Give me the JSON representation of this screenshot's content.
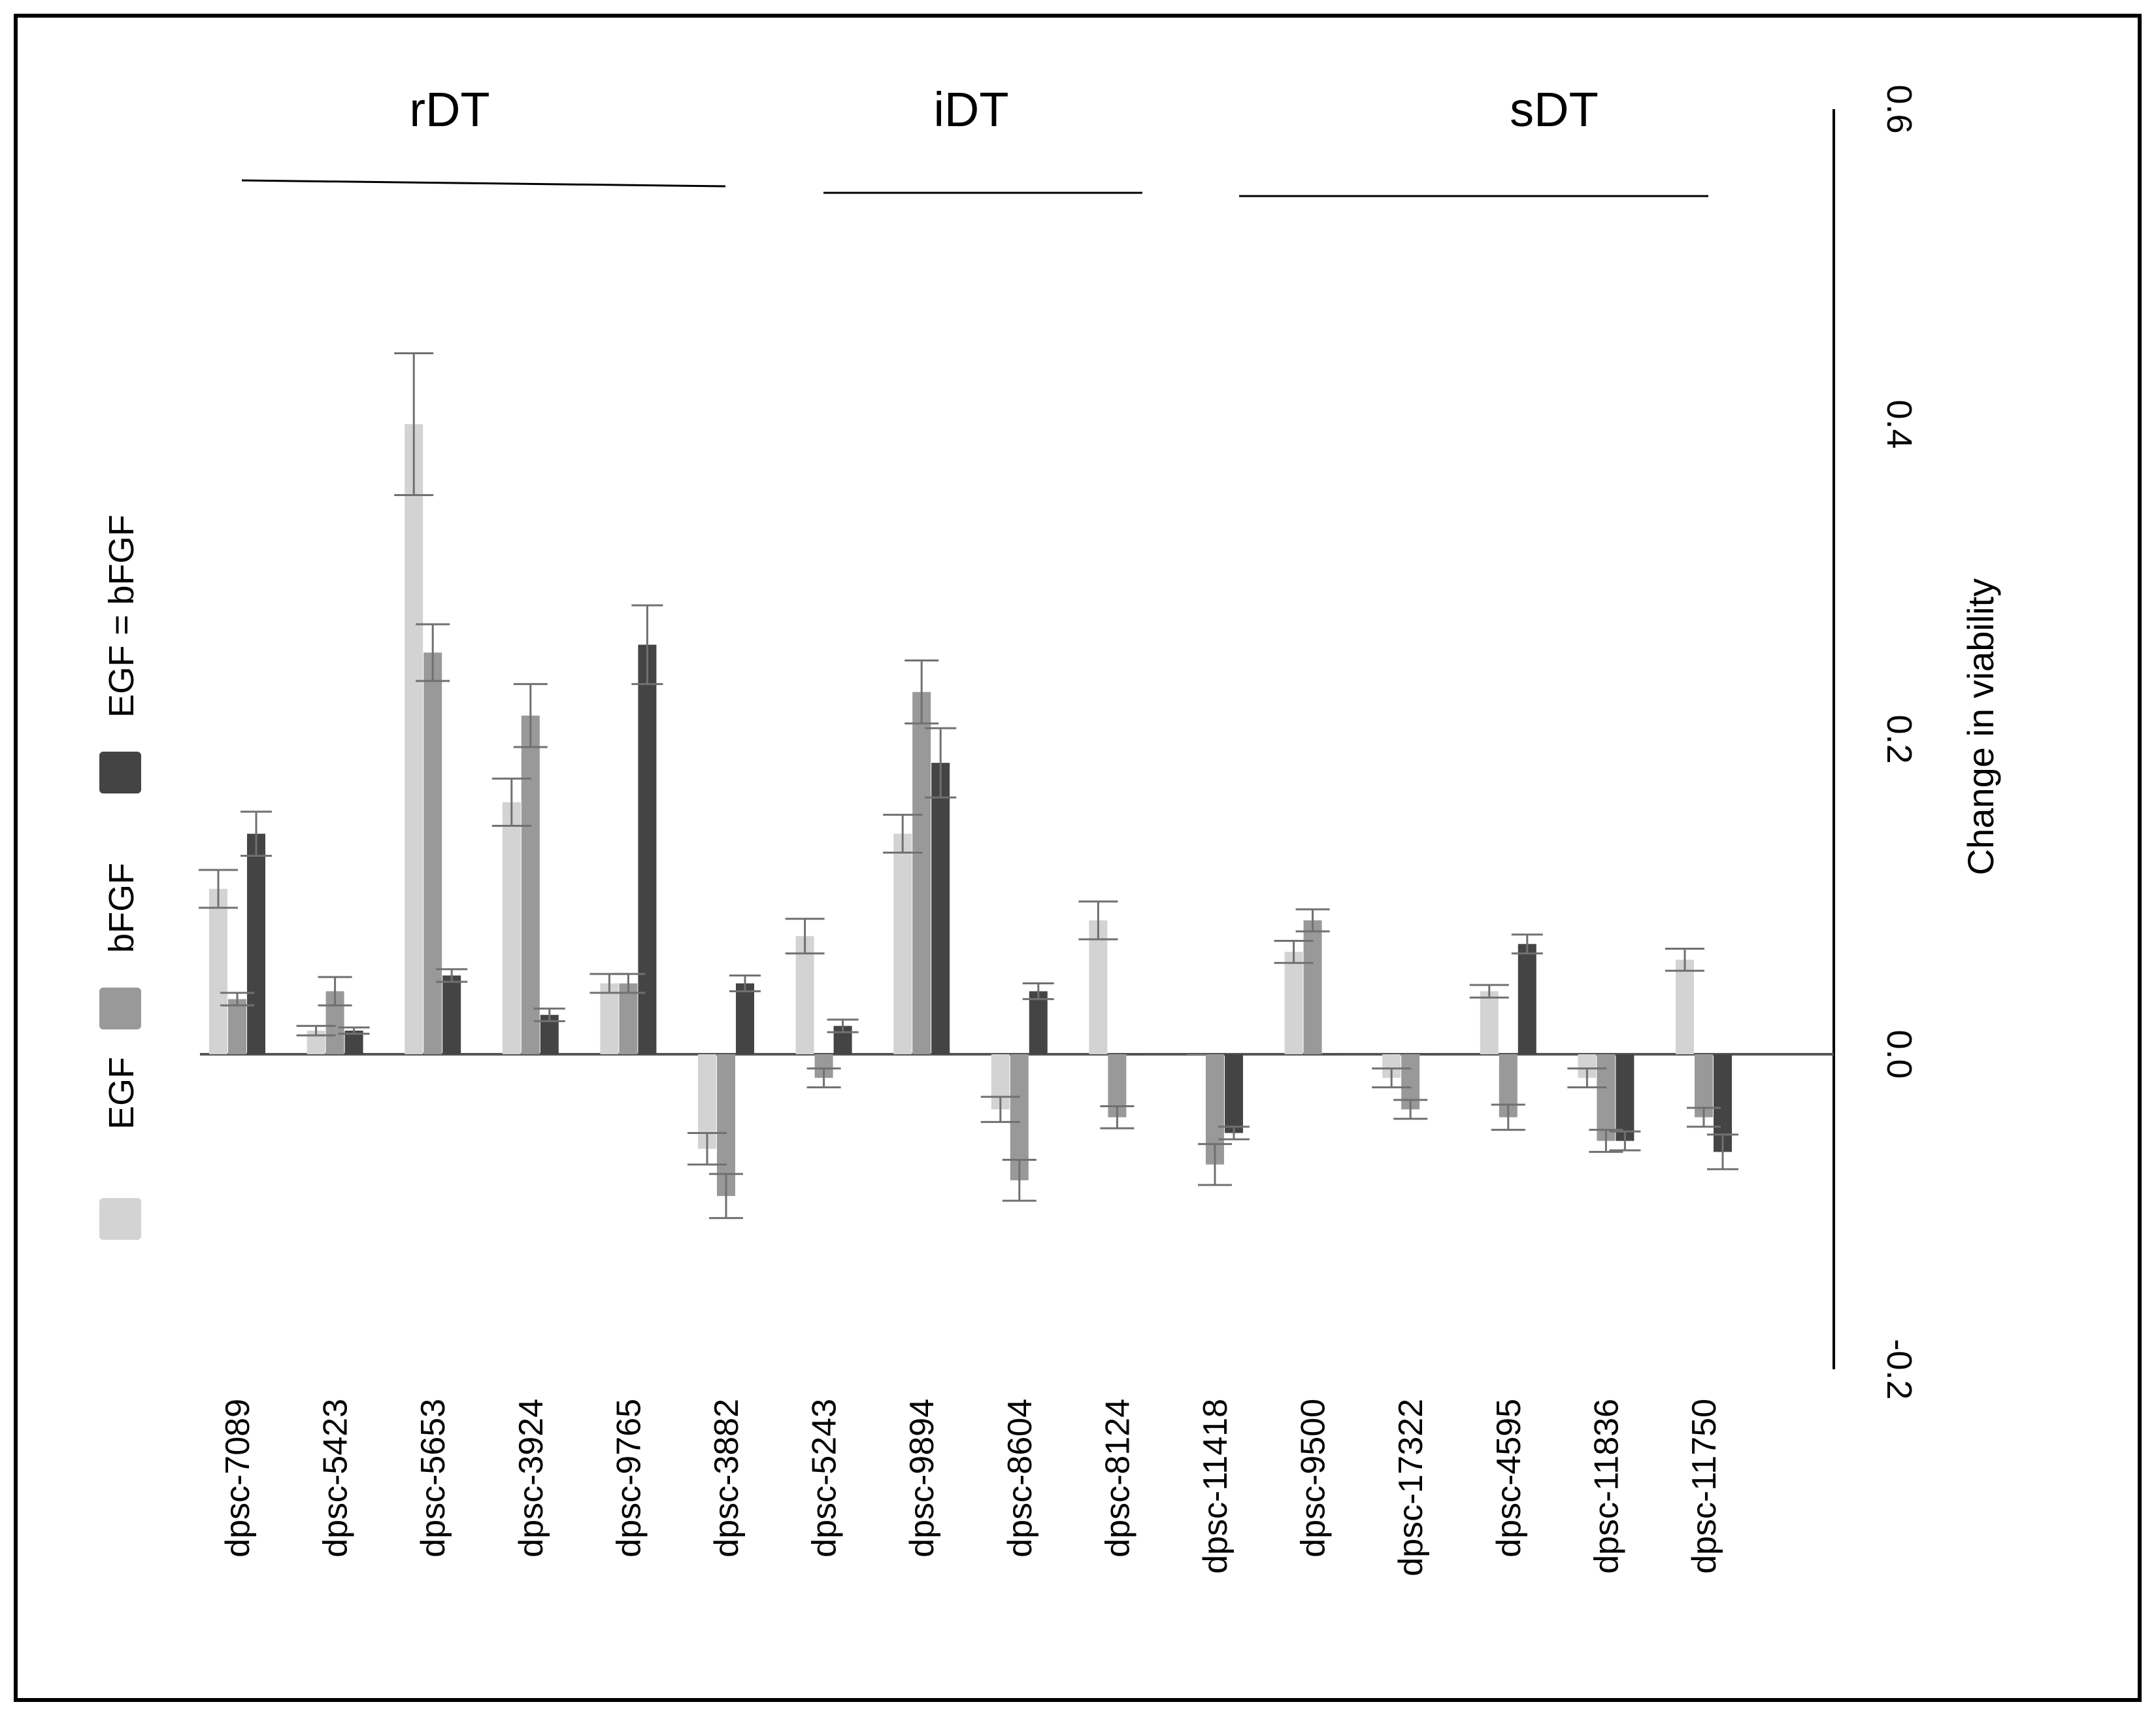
{
  "chart_data": {
    "type": "bar",
    "orientation": "vertical-bars-rotated-labels",
    "title": "",
    "xlabel": "",
    "ylabel": "Change in viability",
    "ylim": [
      -0.2,
      0.6
    ],
    "yticks": [
      0.6,
      0.4,
      0.2,
      0.0,
      -0.2
    ],
    "ytick_labels": [
      "0.6",
      "0.4",
      "0.2",
      "0.0",
      "-0.2"
    ],
    "grid": false,
    "legend_position": "left",
    "categories": [
      "dpsc-7089",
      "dpsc-5423",
      "dpsc-5653",
      "dpsc-3924",
      "dpsc-9765",
      "dpsc-3882",
      "dpsc-5243",
      "dpsc-9894",
      "dpsc-8604",
      "dpsc-8124",
      "dpsc-11418",
      "dpsc-9500",
      "dpsc-17322",
      "dpsc-4595",
      "dpsc-11836",
      "dpsc-11750"
    ],
    "groups": [
      {
        "label": "rDT",
        "from": 0,
        "to": 5
      },
      {
        "label": "iDT",
        "from": 6,
        "to": 9
      },
      {
        "label": "sDT",
        "from": 10,
        "to": 15
      }
    ],
    "series": [
      {
        "name": "EGF",
        "color": "#d3d3d3",
        "values": [
          0.105,
          0.015,
          0.4,
          0.16,
          0.045,
          -0.06,
          0.075,
          0.14,
          -0.035,
          0.085,
          0.0,
          0.065,
          -0.015,
          0.04,
          -0.015,
          0.06
        ],
        "errors": [
          0.012,
          0.003,
          0.045,
          0.015,
          0.006,
          0.01,
          0.011,
          0.012,
          0.008,
          0.012,
          0.0,
          0.007,
          0.006,
          0.004,
          0.006,
          0.007
        ]
      },
      {
        "name": "bFGF",
        "color": "#999999",
        "values": [
          0.035,
          0.04,
          0.255,
          0.215,
          0.045,
          -0.09,
          -0.015,
          0.23,
          -0.08,
          -0.04,
          -0.07,
          0.085,
          -0.035,
          -0.04,
          -0.055,
          -0.04
        ],
        "errors": [
          0.004,
          0.009,
          0.018,
          0.02,
          0.006,
          0.014,
          0.006,
          0.02,
          0.013,
          0.007,
          0.013,
          0.007,
          0.006,
          0.008,
          0.007,
          0.006
        ]
      },
      {
        "name": "EGF = bFGF",
        "color": "#444444",
        "values": [
          0.14,
          0.015,
          0.05,
          0.025,
          0.26,
          0.045,
          0.018,
          0.185,
          0.04,
          0.0,
          -0.05,
          0.0,
          0.0,
          0.07,
          -0.055,
          -0.062
        ],
        "errors": [
          0.014,
          0.002,
          0.004,
          0.004,
          0.025,
          0.005,
          0.004,
          0.022,
          0.005,
          0.0,
          0.004,
          0.0,
          0.0,
          0.006,
          0.006,
          0.011
        ]
      }
    ]
  }
}
